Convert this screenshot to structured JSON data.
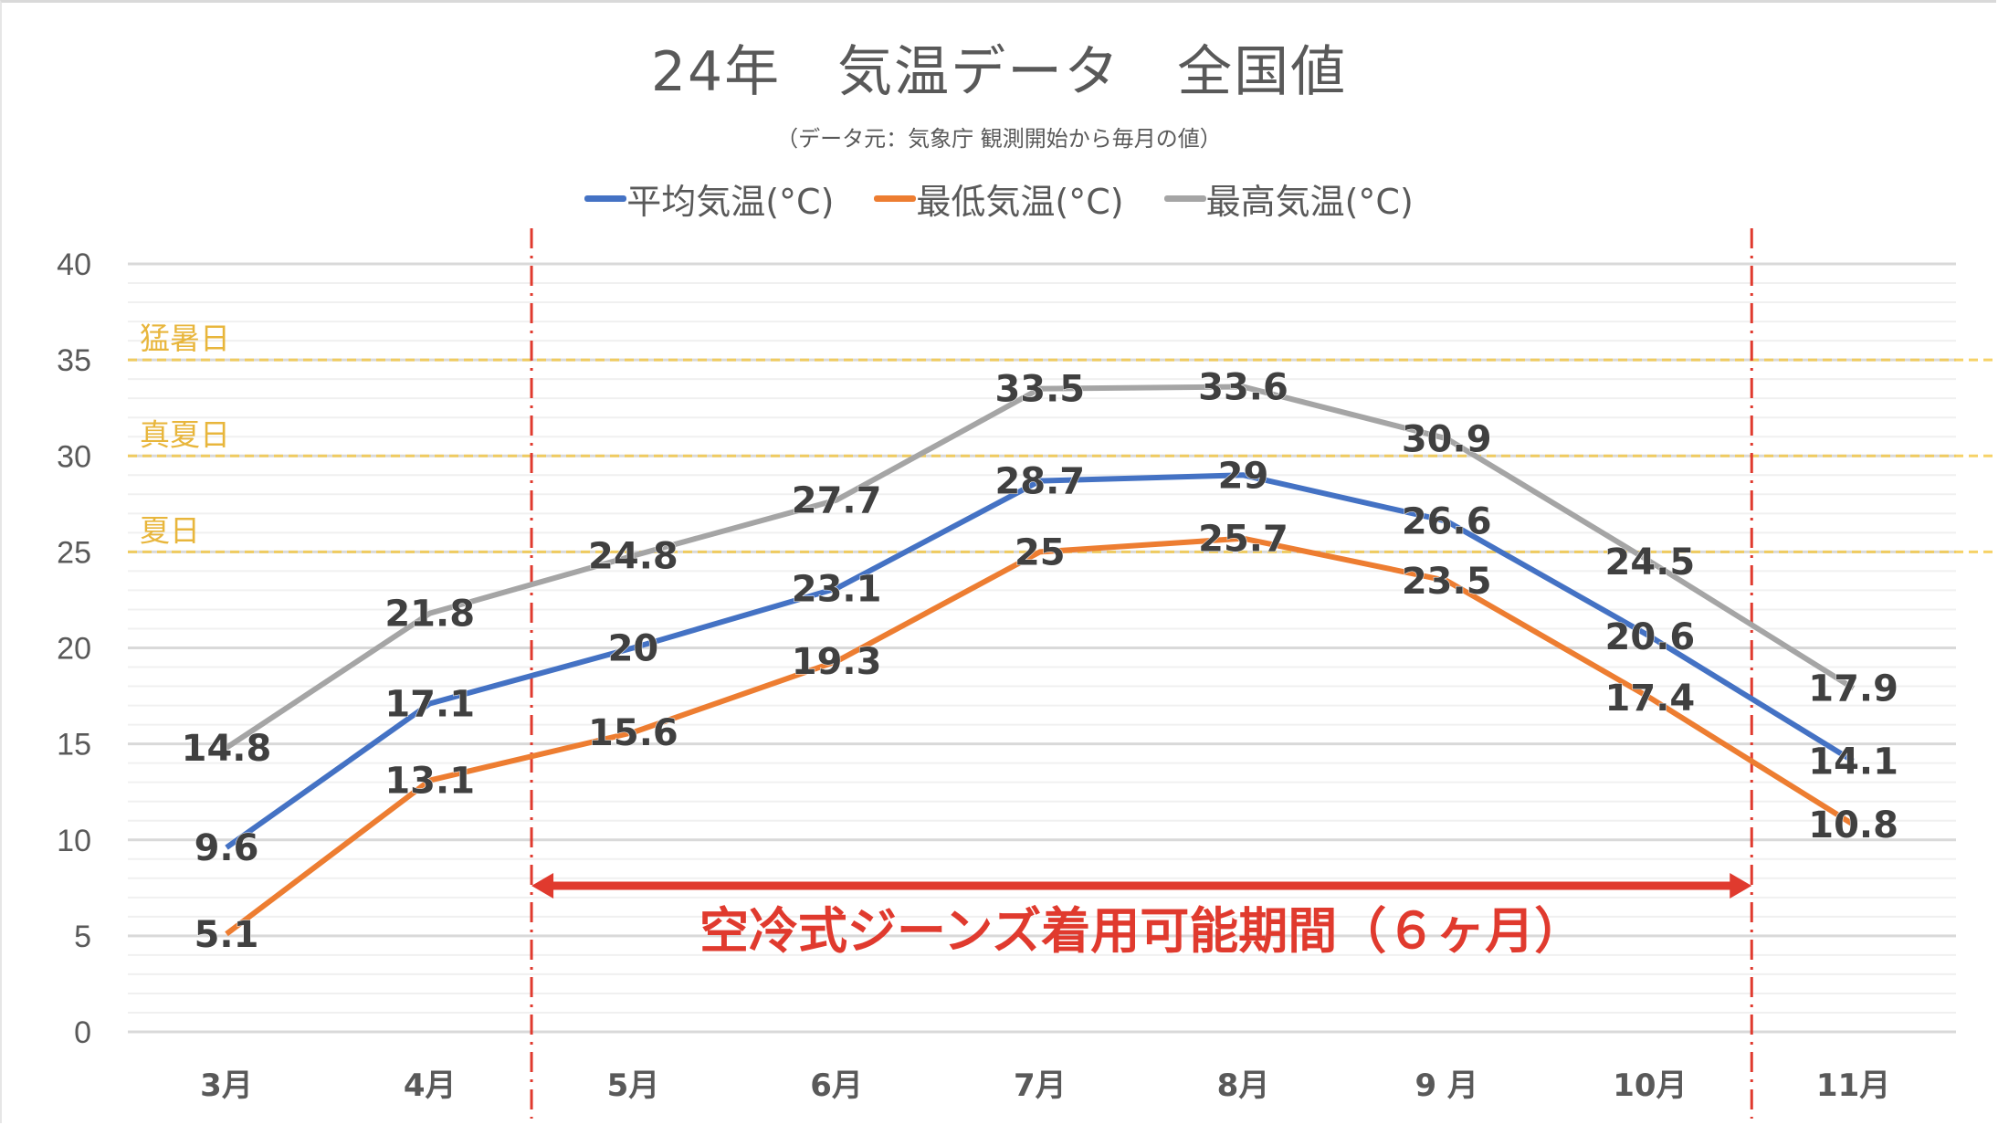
{
  "chart_data": {
    "type": "line",
    "title": "24年　気温データ　全国値",
    "subtitle": "（データ元：気象庁 観測開始から毎月の値）",
    "categories": [
      "3月",
      "4月",
      "5月",
      "6月",
      "7月",
      "8月",
      "9 月",
      "10月",
      "11月"
    ],
    "ylim": [
      0,
      40
    ],
    "yticks": [
      0,
      5,
      10,
      15,
      20,
      25,
      30,
      35,
      40
    ],
    "grid": true,
    "legend_position": "top",
    "series": [
      {
        "name": "平均気温(°C)",
        "color": "#4472c4",
        "values": [
          9.6,
          17.1,
          20,
          23.1,
          28.7,
          29,
          26.6,
          20.6,
          14.1
        ]
      },
      {
        "name": "最低気温(°C)",
        "color": "#ed7d31",
        "values": [
          5.1,
          13.1,
          15.6,
          19.3,
          25,
          25.7,
          23.5,
          17.4,
          10.8
        ]
      },
      {
        "name": "最高気温(°C)",
        "color": "#a5a5a5",
        "values": [
          14.8,
          21.8,
          24.8,
          27.7,
          33.5,
          33.6,
          30.9,
          24.5,
          17.9
        ]
      }
    ],
    "reference_lines": [
      {
        "label": "猛暑日",
        "value": 35
      },
      {
        "label": "真夏日",
        "value": 30
      },
      {
        "label": "夏日",
        "value": 25
      }
    ],
    "reference_color": "#f5c842",
    "period": {
      "label": "空冷式ジーンズ着用可能期間（６ヶ月）",
      "from": 4.5,
      "to": 10.5,
      "color": "#e03a2e"
    }
  }
}
